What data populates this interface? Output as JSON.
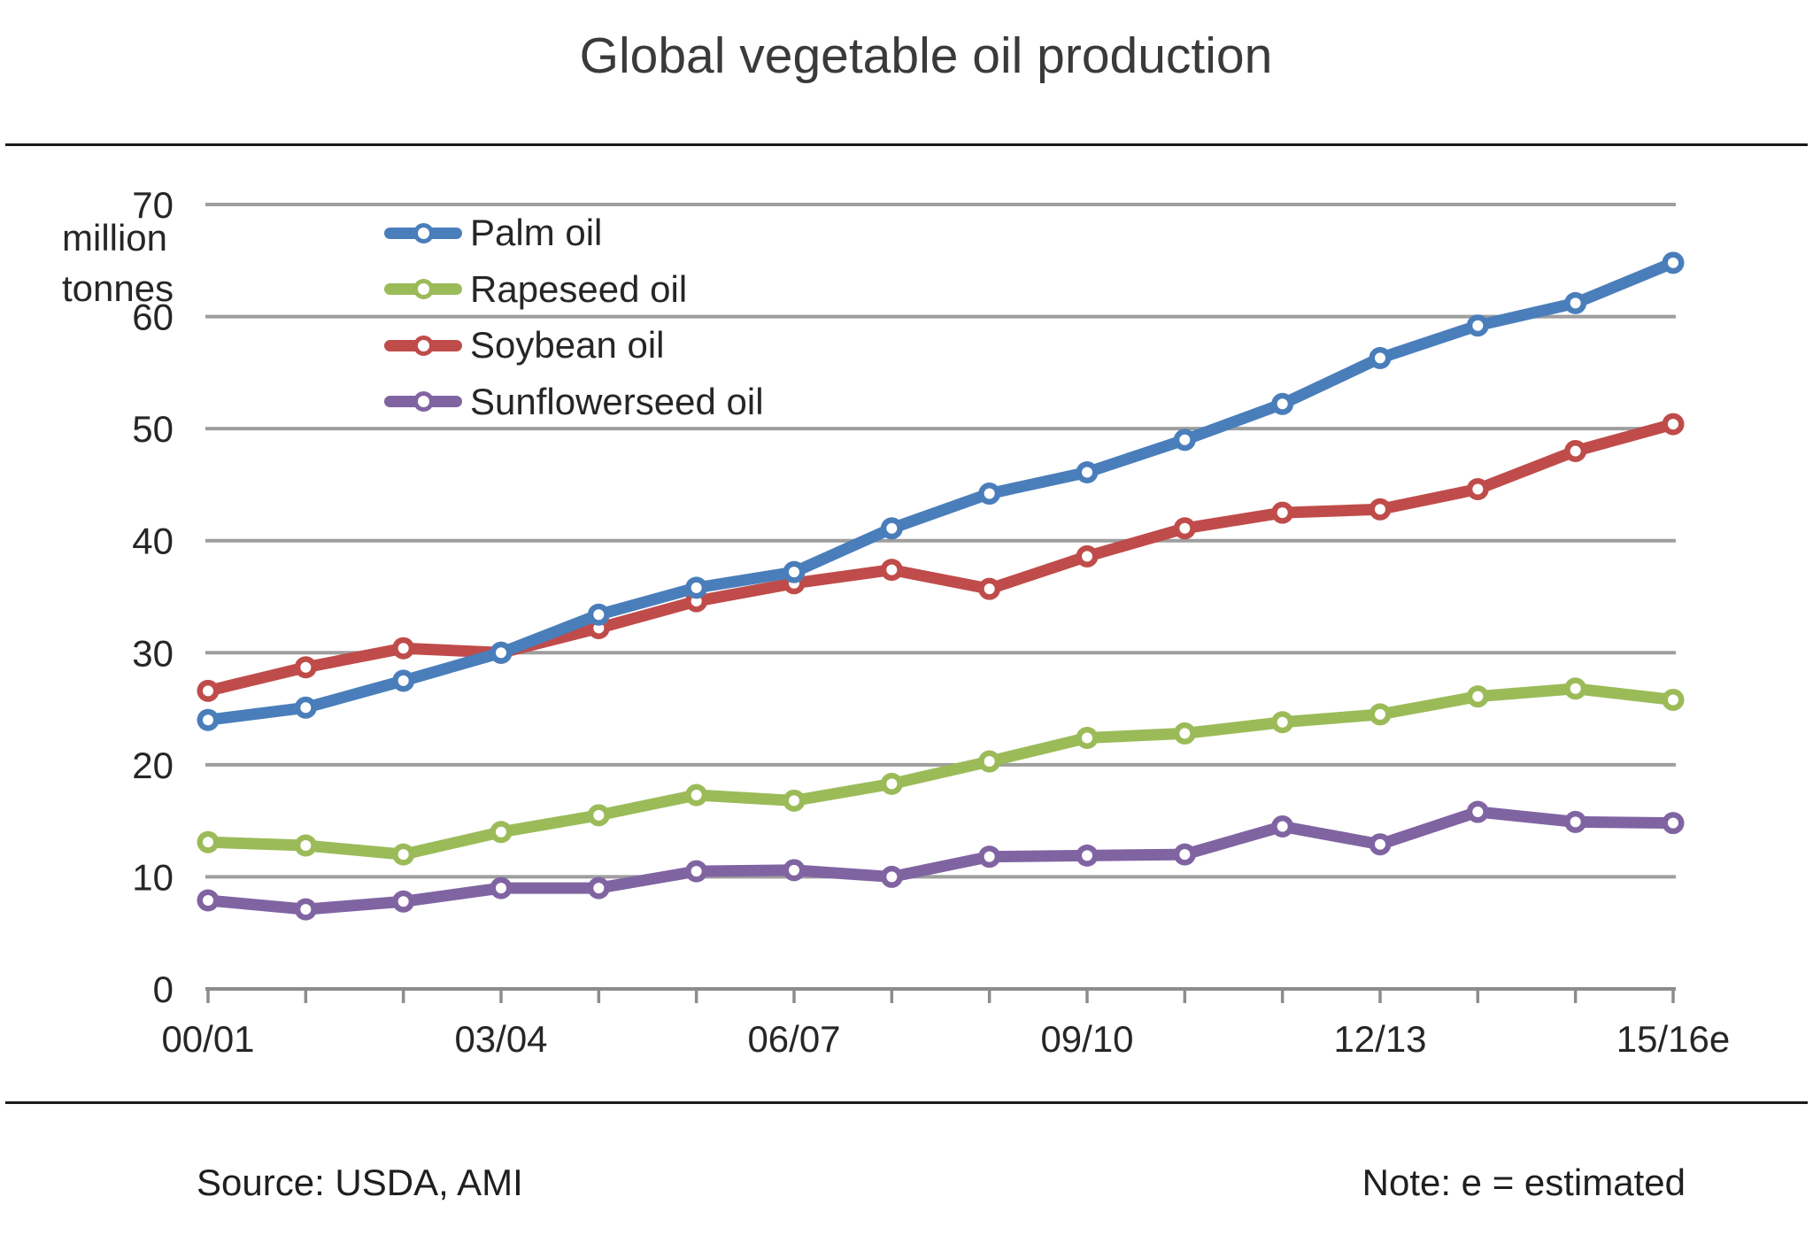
{
  "title": "Global vegetable oil production",
  "axes": {
    "y": {
      "unit_lines": [
        "million",
        "tonnes"
      ],
      "tick_values": [
        0,
        10,
        20,
        30,
        40,
        50,
        60,
        70
      ]
    },
    "x": {
      "labeled_tick_indices": [
        0,
        3,
        6,
        9,
        12,
        15
      ],
      "labeled_ticks": [
        "00/01",
        "03/04",
        "06/07",
        "09/10",
        "12/13",
        "15/16e"
      ]
    }
  },
  "legend": {
    "items": [
      {
        "label": "Palm oil"
      },
      {
        "label": "Rapeseed oil"
      },
      {
        "label": "Soybean oil"
      },
      {
        "label": "Sunflowerseed oil"
      }
    ]
  },
  "chart_data": {
    "type": "line",
    "title": "Global vegetable oil production",
    "ylabel": "million tonnes",
    "ylim": [
      0,
      70
    ],
    "y_tick_step": 10,
    "grid": true,
    "legend_position": "top-left-inside",
    "categories": [
      "00/01",
      "01/02",
      "02/03",
      "03/04",
      "04/05",
      "05/06",
      "06/07",
      "07/08",
      "08/09",
      "09/10",
      "10/11",
      "11/12",
      "12/13",
      "13/14",
      "14/15",
      "15/16e"
    ],
    "series": [
      {
        "name": "Palm oil",
        "color": "#4a7ebb",
        "values": [
          24.0,
          25.1,
          27.5,
          30.0,
          33.4,
          35.8,
          37.2,
          41.1,
          44.2,
          46.1,
          49.0,
          52.2,
          56.3,
          59.2,
          61.2,
          64.8
        ]
      },
      {
        "name": "Rapeseed oil",
        "color": "#9bbb59",
        "values": [
          13.1,
          12.8,
          12.0,
          14.0,
          15.5,
          17.3,
          16.8,
          18.3,
          20.3,
          22.4,
          22.8,
          23.8,
          24.5,
          26.1,
          26.8,
          25.8
        ]
      },
      {
        "name": "Soybean oil",
        "color": "#bf4c4a",
        "values": [
          26.6,
          28.7,
          30.4,
          30.0,
          32.2,
          34.6,
          36.2,
          37.4,
          35.7,
          38.6,
          41.1,
          42.5,
          42.8,
          44.6,
          48.0,
          50.4
        ]
      },
      {
        "name": "Sunflowerseed oil",
        "color": "#8064a2",
        "values": [
          7.9,
          7.1,
          7.8,
          9.0,
          9.0,
          10.5,
          10.6,
          10.0,
          11.8,
          11.9,
          12.0,
          14.5,
          12.9,
          15.8,
          14.9,
          14.8
        ]
      }
    ]
  },
  "footer": {
    "source": "Source: USDA, AMI",
    "note": "Note: e = estimated"
  },
  "colors": {
    "gridline": "#9e9e9e",
    "axis": "#8c8c8c",
    "tick_text": "#262626",
    "rule": "#1a1a1a"
  }
}
